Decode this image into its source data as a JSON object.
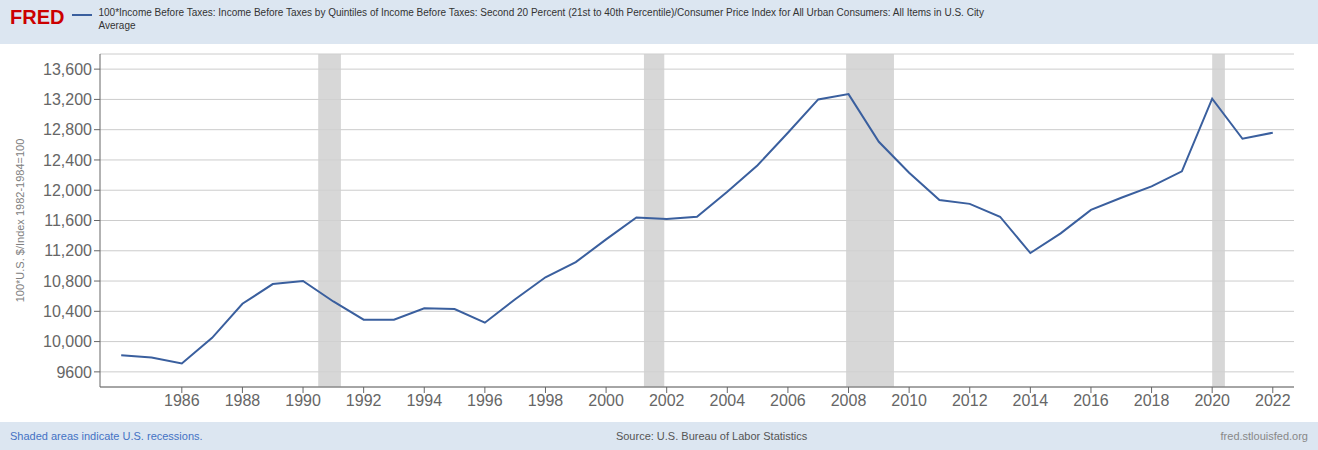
{
  "chart_data": {
    "type": "line",
    "title": "100*Income Before Taxes: Income Before Taxes by Quintiles of Income Before Taxes: Second 20 Percent (21st to 40th Percentile)/Consumer Price Index for All Urban Consumers: All Items in U.S. City\nAverage",
    "y_label": "100*U.S. $/Index 1982-1984=100",
    "annotations": [
      "FRED",
      "Shaded areas indicate U.S. recessions.",
      "Source: U.S. Bureau of Labor Statistics",
      "fred.stlouisfed.org"
    ],
    "x": [
      1984,
      1985,
      1986,
      1987,
      1988,
      1989,
      1990,
      1991,
      1992,
      1993,
      1994,
      1995,
      1996,
      1997,
      1998,
      1999,
      2000,
      2001,
      2002,
      2003,
      2004,
      2005,
      2006,
      2007,
      2008,
      2009,
      2010,
      2011,
      2012,
      2013,
      2014,
      2015,
      2016,
      2017,
      2018,
      2019,
      2020,
      2021,
      2022
    ],
    "values": [
      9820,
      9790,
      9710,
      10050,
      10500,
      10760,
      10800,
      10530,
      10290,
      10290,
      10440,
      10430,
      10250,
      10560,
      10850,
      11050,
      11350,
      11640,
      11620,
      11650,
      11980,
      12330,
      12760,
      13200,
      13270,
      12640,
      12230,
      11870,
      11820,
      11650,
      11170,
      11430,
      11740,
      11900,
      12050,
      12250,
      13210,
      12680,
      12760
    ],
    "color": "#3a5f9e",
    "recessions": [
      [
        1990.5,
        1991.25
      ],
      [
        2001.25,
        2001.92
      ],
      [
        2007.92,
        2009.5
      ],
      [
        2020.0,
        2020.42
      ]
    ],
    "xlim": [
      1983.3,
      2022.7
    ],
    "xticks": [
      1986,
      1988,
      1990,
      1992,
      1994,
      1996,
      1998,
      2000,
      2002,
      2004,
      2006,
      2008,
      2010,
      2012,
      2014,
      2016,
      2018,
      2020,
      2022
    ],
    "ylim": [
      9400,
      13800
    ],
    "yticks": [
      9600,
      {
        "value": 10000,
        "label": "10,000"
      },
      {
        "value": 10400,
        "label": "10,400"
      },
      {
        "value": 10800,
        "label": "10,800"
      },
      {
        "value": 11200,
        "label": "11,200"
      },
      {
        "value": 11600,
        "label": "11,600"
      },
      {
        "value": 12000,
        "label": "12,000"
      },
      {
        "value": 12400,
        "label": "12,400"
      },
      {
        "value": 12800,
        "label": "12,800"
      },
      {
        "value": 13200,
        "label": "13,200"
      },
      {
        "value": 13600,
        "label": "13,600"
      }
    ],
    "grid": true
  }
}
